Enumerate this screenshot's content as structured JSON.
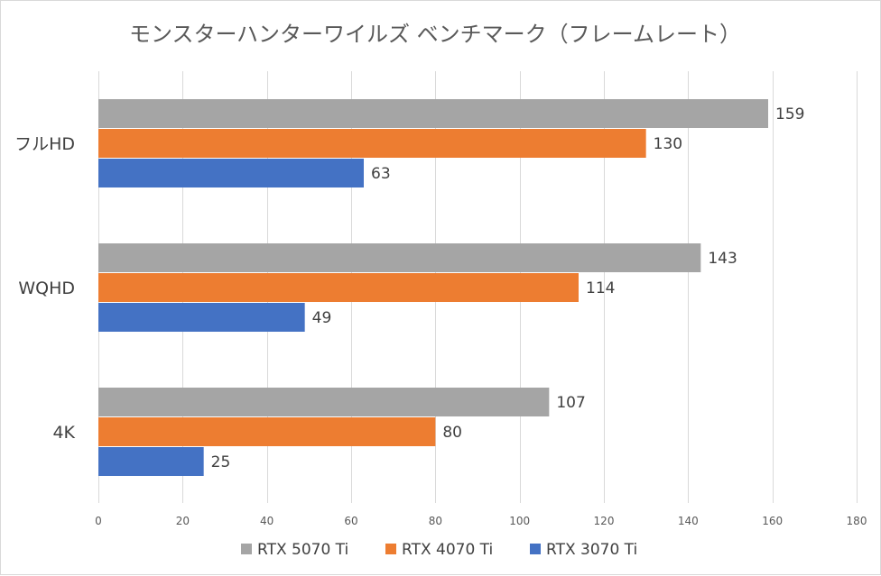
{
  "chart_data": {
    "type": "bar",
    "orientation": "horizontal",
    "title": "モンスターハンターワイルズ ベンチマーク（フレームレート）",
    "categories": [
      "フルHD",
      "WQHD",
      "4K"
    ],
    "series": [
      {
        "name": "RTX 5070 Ti",
        "color": "#a5a5a5",
        "values": [
          159,
          143,
          107
        ]
      },
      {
        "name": "RTX 4070 Ti",
        "color": "#ed7d31",
        "values": [
          130,
          114,
          80
        ]
      },
      {
        "name": "RTX 3070 Ti",
        "color": "#4472c4",
        "values": [
          63,
          49,
          25
        ]
      }
    ],
    "xlim": [
      0,
      180
    ],
    "xticks": [
      0,
      20,
      40,
      60,
      80,
      100,
      120,
      140,
      160,
      180
    ],
    "xlabel": "",
    "ylabel": "",
    "grid": true,
    "legend_position": "bottom"
  }
}
